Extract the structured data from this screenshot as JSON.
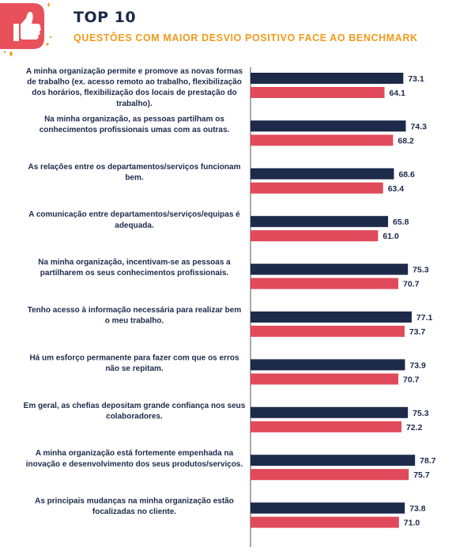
{
  "header": {
    "title": "TOP 10",
    "subtitle": "QUESTÕES COM MAIOR DESVIO POSITIVO FACE AO BENCHMARK",
    "icon": "thumbs-up-icon"
  },
  "colors": {
    "org": "#1d2a4a",
    "benchmark": "#e04a5a",
    "accent": "#f19a1a",
    "icon": "#e8505b"
  },
  "chart_data": {
    "type": "bar",
    "orientation": "horizontal",
    "categories": [
      [
        "A minha organização permite e promove  as novas formas",
        "de trabalho (ex. acesso remoto ao trabalho, flexibilização",
        "dos horários, flexibilização dos locais de prestação do",
        "trabalho)."
      ],
      [
        "Na minha organização, as pessoas partilham os",
        "conhecimentos profissionais umas com as outras."
      ],
      [
        "As relações entre os departamentos/serviços funcionam",
        "bem."
      ],
      [
        "A comunicação entre departamentos/serviços/equipas  é",
        "adequada."
      ],
      [
        "Na minha  organização, incentivam-se as pessoas a",
        "partilharem os seus conhecimentos profissionais."
      ],
      [
        "Tenho acesso à informação necessária para realizar bem",
        "o meu trabalho."
      ],
      [
        "Há um esforço permanente  para fazer com que os erros",
        "não  se repitam."
      ],
      [
        "Em geral, as chefias depositam grande confiança nos seus",
        "colaboradores."
      ],
      [
        "A minha organização está fortemente empenhada  na",
        "inovação e desenvolvimento dos seus produtos/serviços."
      ],
      [
        "As principais mudanças na minha organização estão",
        "focalizadas no cliente."
      ]
    ],
    "series": [
      {
        "values": [
          73.1,
          74.3,
          68.6,
          65.8,
          75.3,
          77.1,
          73.9,
          75.3,
          78.7,
          73.8
        ]
      },
      {
        "values": [
          64.1,
          68.2,
          63.4,
          61.0,
          70.7,
          73.7,
          70.7,
          72.2,
          75.7,
          71.0
        ]
      }
    ],
    "value_labels": [
      [
        "73.1",
        "74.3",
        "68.6",
        "65.8",
        "75.3",
        "77.1",
        "73.9",
        "75.3",
        "78.7",
        "73.8"
      ],
      [
        "64.1",
        "68.2",
        "63.4",
        "61.0",
        "70.7",
        "73.7",
        "70.7",
        "72.2",
        "75.7",
        "71.0"
      ]
    ],
    "legend": "none",
    "grid": false
  }
}
